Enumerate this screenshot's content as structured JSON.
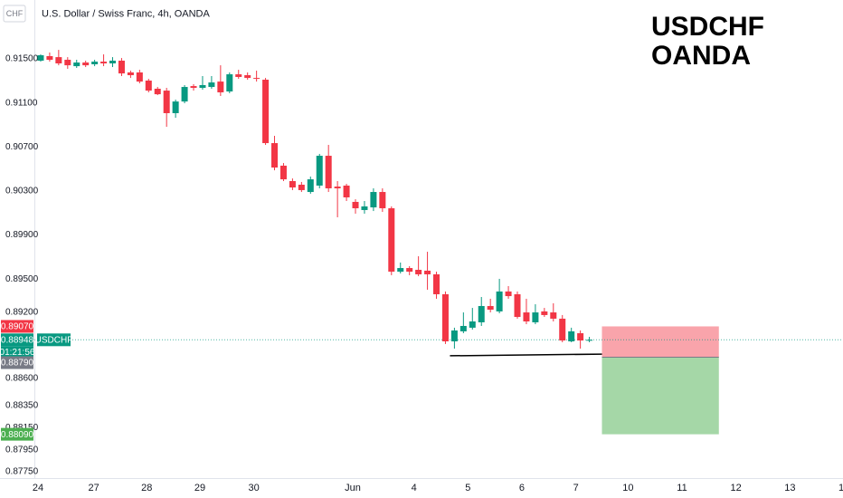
{
  "chart_data": {
    "type": "candlestick",
    "symbol_box": "CHF",
    "title": "U.S. Dollar / Swiss Franc, 4h, OANDA",
    "watermark": [
      "USDCHF",
      "OANDA"
    ],
    "up_color": "#089981",
    "down_color": "#f23645",
    "open": [
      0.91484,
      0.91525,
      0.91516,
      0.91492,
      0.91434,
      0.91467,
      0.91451,
      0.91475,
      0.91459,
      0.91484,
      0.91377,
      0.91377,
      0.91303,
      0.91229,
      0.91212,
      0.91007,
      0.91113,
      0.91253,
      0.91237,
      0.91245,
      0.91294,
      0.91204,
      0.9136,
      0.91352,
      0.91327,
      0.91311,
      0.90735,
      0.9053,
      0.9039,
      0.90357,
      0.90291,
      0.90349,
      0.9062,
      0.9034,
      0.90349,
      0.90201,
      0.90127,
      0.90151,
      0.90291,
      0.90143,
      0.89567,
      0.896,
      0.89584,
      0.89576,
      0.89543,
      0.89362,
      0.88934,
      0.89025,
      0.89058,
      0.89107,
      0.89255,
      0.89206,
      0.89387,
      0.89362,
      0.89197,
      0.89107,
      0.89206,
      0.89197,
      0.8914,
      0.88934,
      0.89008,
      0.88942
    ],
    "high": [
      0.91541,
      0.91558,
      0.91582,
      0.91516,
      0.91492,
      0.91484,
      0.91492,
      0.91541,
      0.91516,
      0.91508,
      0.91393,
      0.91401,
      0.91319,
      0.91245,
      0.91237,
      0.9113,
      0.91262,
      0.9127,
      0.91344,
      0.91344,
      0.91442,
      0.91377,
      0.91401,
      0.91377,
      0.91393,
      0.91327,
      0.90801,
      0.90554,
      0.90414,
      0.90382,
      0.90431,
      0.90637,
      0.90719,
      0.9039,
      0.90365,
      0.90225,
      0.90209,
      0.90324,
      0.90324,
      0.9016,
      0.8965,
      0.89617,
      0.89707,
      0.89748,
      0.89567,
      0.89387,
      0.89058,
      0.89197,
      0.89238,
      0.89337,
      0.89321,
      0.89502,
      0.89436,
      0.89387,
      0.89321,
      0.89271,
      0.89238,
      0.8928,
      0.89173,
      0.89058,
      0.89033,
      0.88975
    ],
    "low": [
      0.91475,
      0.91475,
      0.91442,
      0.9141,
      0.91418,
      0.91426,
      0.91434,
      0.91434,
      0.91426,
      0.91344,
      0.91327,
      0.91278,
      0.91196,
      0.91171,
      0.90883,
      0.90965,
      0.91097,
      0.91212,
      0.9122,
      0.91229,
      0.91163,
      0.91188,
      0.91319,
      0.91311,
      0.91294,
      0.90719,
      0.90488,
      0.9039,
      0.90308,
      0.90291,
      0.90275,
      0.90324,
      0.90291,
      0.90061,
      0.90209,
      0.90094,
      0.90094,
      0.90118,
      0.9011,
      0.89535,
      0.89551,
      0.89535,
      0.89526,
      0.89403,
      0.89321,
      0.8891,
      0.88868,
      0.89008,
      0.89041,
      0.89074,
      0.89197,
      0.89189,
      0.89321,
      0.8914,
      0.8909,
      0.8909,
      0.89156,
      0.89115,
      0.88926,
      0.88926,
      0.88868,
      0.88926
    ],
    "close": [
      0.91533,
      0.91492,
      0.91459,
      0.91442,
      0.91467,
      0.91442,
      0.91475,
      0.91459,
      0.91484,
      0.91368,
      0.91352,
      0.91294,
      0.91212,
      0.91179,
      0.91007,
      0.91113,
      0.91245,
      0.91237,
      0.91262,
      0.91286,
      0.91196,
      0.9136,
      0.91336,
      0.91327,
      0.91319,
      0.90735,
      0.90513,
      0.90406,
      0.90332,
      0.90308,
      0.90406,
      0.9062,
      0.90324,
      0.90324,
      0.90242,
      0.90143,
      0.9016,
      0.90291,
      0.90143,
      0.89567,
      0.896,
      0.89567,
      0.89543,
      0.89543,
      0.89362,
      0.88934,
      0.89033,
      0.89074,
      0.89115,
      0.89255,
      0.89222,
      0.89387,
      0.89345,
      0.89156,
      0.89115,
      0.89197,
      0.89173,
      0.8914,
      0.88942,
      0.89025,
      0.88942,
      0.88948
    ],
    "xlim": [
      -0.7,
      89.2
    ],
    "ylim": [
      0.87692,
      0.92035
    ],
    "xticks": [
      {
        "value": -0.3,
        "label": "24"
      },
      {
        "value": 5.9,
        "label": "27"
      },
      {
        "value": 11.8,
        "label": "28"
      },
      {
        "value": 17.7,
        "label": "29"
      },
      {
        "value": 23.7,
        "label": "30"
      },
      {
        "value": 34.7,
        "label": "Jun"
      },
      {
        "value": 41.5,
        "label": "4"
      },
      {
        "value": 47.5,
        "label": "5"
      },
      {
        "value": 53.5,
        "label": "6"
      },
      {
        "value": 59.5,
        "label": "7"
      },
      {
        "value": 65.3,
        "label": "10"
      },
      {
        "value": 71.3,
        "label": "11"
      },
      {
        "value": 77.3,
        "label": "12"
      },
      {
        "value": 83.3,
        "label": "13"
      },
      {
        "value": 89.0,
        "label": "1"
      }
    ],
    "yticks": [
      {
        "value": 0.915,
        "label": "0.91500"
      },
      {
        "value": 0.911,
        "label": "0.91100"
      },
      {
        "value": 0.907,
        "label": "0.90700"
      },
      {
        "value": 0.903,
        "label": "0.90300"
      },
      {
        "value": 0.899,
        "label": "0.89900"
      },
      {
        "value": 0.895,
        "label": "0.89500"
      },
      {
        "value": 0.892,
        "label": "0.89200"
      },
      {
        "value": 0.886,
        "label": "0.88600"
      },
      {
        "value": 0.8835,
        "label": "0.88350"
      },
      {
        "value": 0.8815,
        "label": "0.88150"
      },
      {
        "value": 0.8795,
        "label": "0.87950"
      },
      {
        "value": 0.8775,
        "label": "0.87750"
      }
    ],
    "grid": false,
    "last_price": {
      "value": 0.88948,
      "label": "0.88948",
      "countdown": "01:21:56",
      "symbol": "USDCHF"
    },
    "position": {
      "x": [
        62.4,
        75.4
      ],
      "stop": {
        "value": 0.8907,
        "label": "0.89070"
      },
      "entry": {
        "value": 0.8879,
        "label": "0.88790"
      },
      "target": {
        "value": 0.8809,
        "label": "0.88090"
      }
    },
    "line": {
      "x": [
        45.5,
        62.4
      ],
      "y": [
        0.88803,
        0.88818
      ]
    }
  }
}
